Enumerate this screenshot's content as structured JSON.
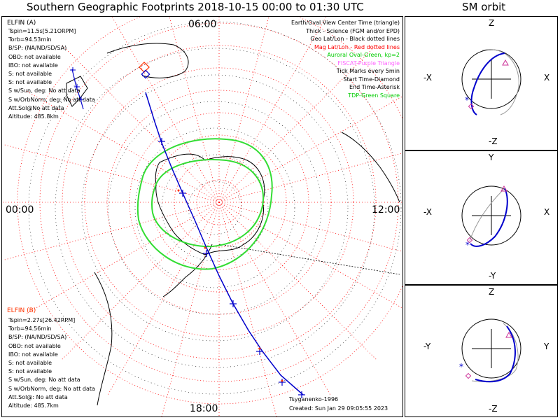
{
  "header": {
    "title": "Southern Geographic Footprints 2018-10-15 00:00 to 01:30 UTC",
    "orbit_title": "SM orbit"
  },
  "map": {
    "mlt_labels": {
      "top": "06:00",
      "left": "00:00",
      "right": "12:00",
      "bottom": "18:00"
    },
    "legend": [
      {
        "text": "Earth/Oval View Center Time (triangle)",
        "color": "#000000"
      },
      {
        "text": "Thick - Science (FGM and/or EPD)",
        "color": "#000000"
      },
      {
        "text": "Geo Lat/Lon - Black dotted lines",
        "color": "#000000"
      },
      {
        "text": "Mag Lat/Lon - Red dotted lines",
        "color": "#ff0000"
      },
      {
        "text": "Auroral Oval-Green, kp=2",
        "color": "#00cc00"
      },
      {
        "text": "FISCAT-Purple Triangle",
        "color": "#ff66ff"
      },
      {
        "text": "Tick Marks every 5min",
        "color": "#000000"
      },
      {
        "text": "Start Time-Diamond",
        "color": "#000000"
      },
      {
        "text": "End Time-Asterisk",
        "color": "#000000"
      },
      {
        "text": "TDP-Green Square",
        "color": "#00cc00"
      }
    ],
    "elfin_a": {
      "name": "ELFIN (A)",
      "color": "#0000cc",
      "lines": [
        "Tspin=11.5s[5.21ORPM]",
        "Torb=94.53min",
        "B/SP: (NA/ND/SD/SA)",
        "OBO: not available",
        "IBO: not available",
        "S: not available",
        "S: not available",
        "S w/Sun, deg: No att data",
        "S w/OrbNorm, deg: No att data",
        "Att.Sol@No att data",
        "Altitude: 485.8km"
      ]
    },
    "elfin_b": {
      "name": "ELFIN (B)",
      "color": "#ff3300",
      "lines": [
        "Tspin=2.27s[26.42RPM]",
        "Torb=94.56min",
        "B/SP: (NA/ND/SD/SA)",
        "OBO: not available",
        "IBO: not available",
        "S: not available",
        "S: not available",
        "S w/Sun, deg: No att data",
        "S w/OrbNorm, deg: No att data",
        "Att.Sol@: No att data",
        "Altitude: 485.7km"
      ]
    },
    "footer": {
      "model": "Tsyganenko-1996",
      "created": "Created: Sun Jan 29 09:05:55 2023"
    }
  },
  "orbit_panels": [
    {
      "top": "Z",
      "bottom": "-Z",
      "left": "-X",
      "right": "X"
    },
    {
      "top": "Y",
      "bottom": "-Y",
      "left": "-X",
      "right": "X"
    },
    {
      "top": "Z",
      "bottom": "-Z",
      "left": "-Y",
      "right": "Y"
    }
  ],
  "chart_data": {
    "type": "scatter",
    "title": "Southern Geographic Footprints 2018-10-15 00:00 to 01:30 UTC",
    "projection": "south-polar",
    "track_a_mlat_mlt": [
      [
        -55,
        4.2
      ],
      [
        -60,
        4.3
      ],
      [
        -65,
        4.5
      ],
      [
        -70,
        4.9
      ],
      [
        -75,
        5.8
      ],
      [
        -80,
        7.5
      ],
      [
        -85,
        12
      ],
      [
        -82,
        16.2
      ],
      [
        -76,
        17.2
      ],
      [
        -70,
        17.6
      ],
      [
        -65,
        17.8
      ],
      [
        -58,
        17.9
      ],
      [
        -52,
        18.0
      ]
    ],
    "colors": {
      "elfin_a": "#0000cc",
      "elfin_b": "#ff3300",
      "oval": "#33dd33",
      "mag_grid": "#ff0000",
      "geo_grid": "#000000"
    }
  }
}
